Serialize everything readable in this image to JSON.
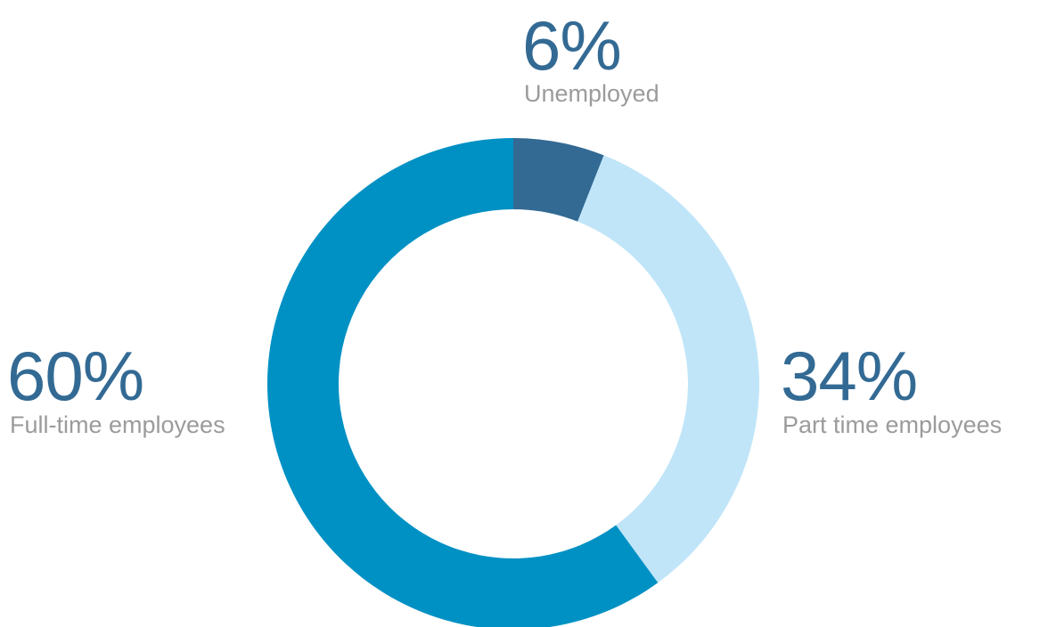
{
  "chart_data": {
    "type": "pie",
    "variant": "donut",
    "title": "",
    "start_angle_deg": 0,
    "direction": "clockwise",
    "slices": [
      {
        "label": "Unemployed",
        "value": 6,
        "value_label": "6%",
        "color": "#336a94"
      },
      {
        "label": "Part time employees",
        "value": 34,
        "value_label": "34%",
        "color": "#c0e5f9"
      },
      {
        "label": "Full-time employees",
        "value": 60,
        "value_label": "60%",
        "color": "#0091c4"
      }
    ],
    "legend": "none"
  },
  "colors": {
    "value_text": "#336a94",
    "label_text": "#9b9b9b",
    "background": "#ffffff"
  }
}
